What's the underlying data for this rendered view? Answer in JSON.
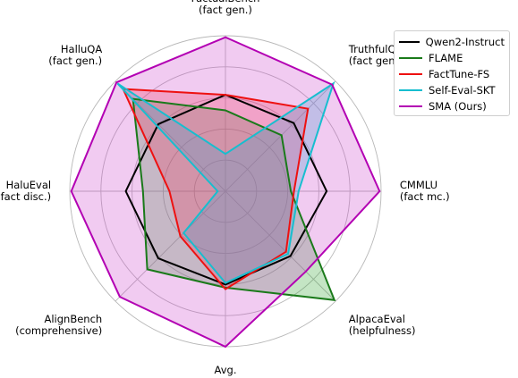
{
  "chart_data": {
    "type": "radar",
    "axes": [
      [
        "FactualBench",
        "(fact gen.)"
      ],
      [
        "TruthfulQA",
        "(fact gen.)"
      ],
      [
        "CMMLU",
        "(fact mc.)"
      ],
      [
        "AlpacaEval",
        "(helpfulness)"
      ],
      [
        "Avg."
      ],
      [
        "AlignBench",
        "(comprehensive)"
      ],
      [
        "HaluEval",
        "(fact disc.)"
      ],
      [
        "HalluQA",
        "(fact gen.)"
      ]
    ],
    "rlim": [
      0,
      1
    ],
    "grid": true,
    "legend_position": "top-right",
    "series": [
      {
        "name": "Qwen2-Instruct",
        "color": "#000000",
        "fill": false,
        "values": [
          0.62,
          0.62,
          0.65,
          0.59,
          0.6,
          0.61,
          0.64,
          0.61
        ]
      },
      {
        "name": "FLAME",
        "color": "#1a7a1a",
        "fill": true,
        "fill_color": "#2ca02c",
        "values": [
          0.52,
          0.51,
          0.42,
          0.99,
          0.62,
          0.71,
          0.53,
          0.84
        ]
      },
      {
        "name": "FactTune-FS",
        "color": "#ee1111",
        "fill": true,
        "fill_color": "#ff3333",
        "values": [
          0.62,
          0.75,
          0.44,
          0.55,
          0.63,
          0.41,
          0.36,
          0.93
        ]
      },
      {
        "name": "Self-Eval-SKT",
        "color": "#17becf",
        "fill": true,
        "fill_color": "#17becf",
        "values": [
          0.24,
          0.98,
          0.47,
          0.57,
          0.59,
          0.38,
          0.05,
          0.98
        ]
      },
      {
        "name": "SMA (Ours)",
        "color": "#b300b3",
        "fill": true,
        "fill_color": "#cc44cc",
        "values": [
          0.99,
          0.97,
          0.99,
          0.73,
          1.0,
          0.96,
          0.99,
          0.99
        ]
      }
    ]
  }
}
